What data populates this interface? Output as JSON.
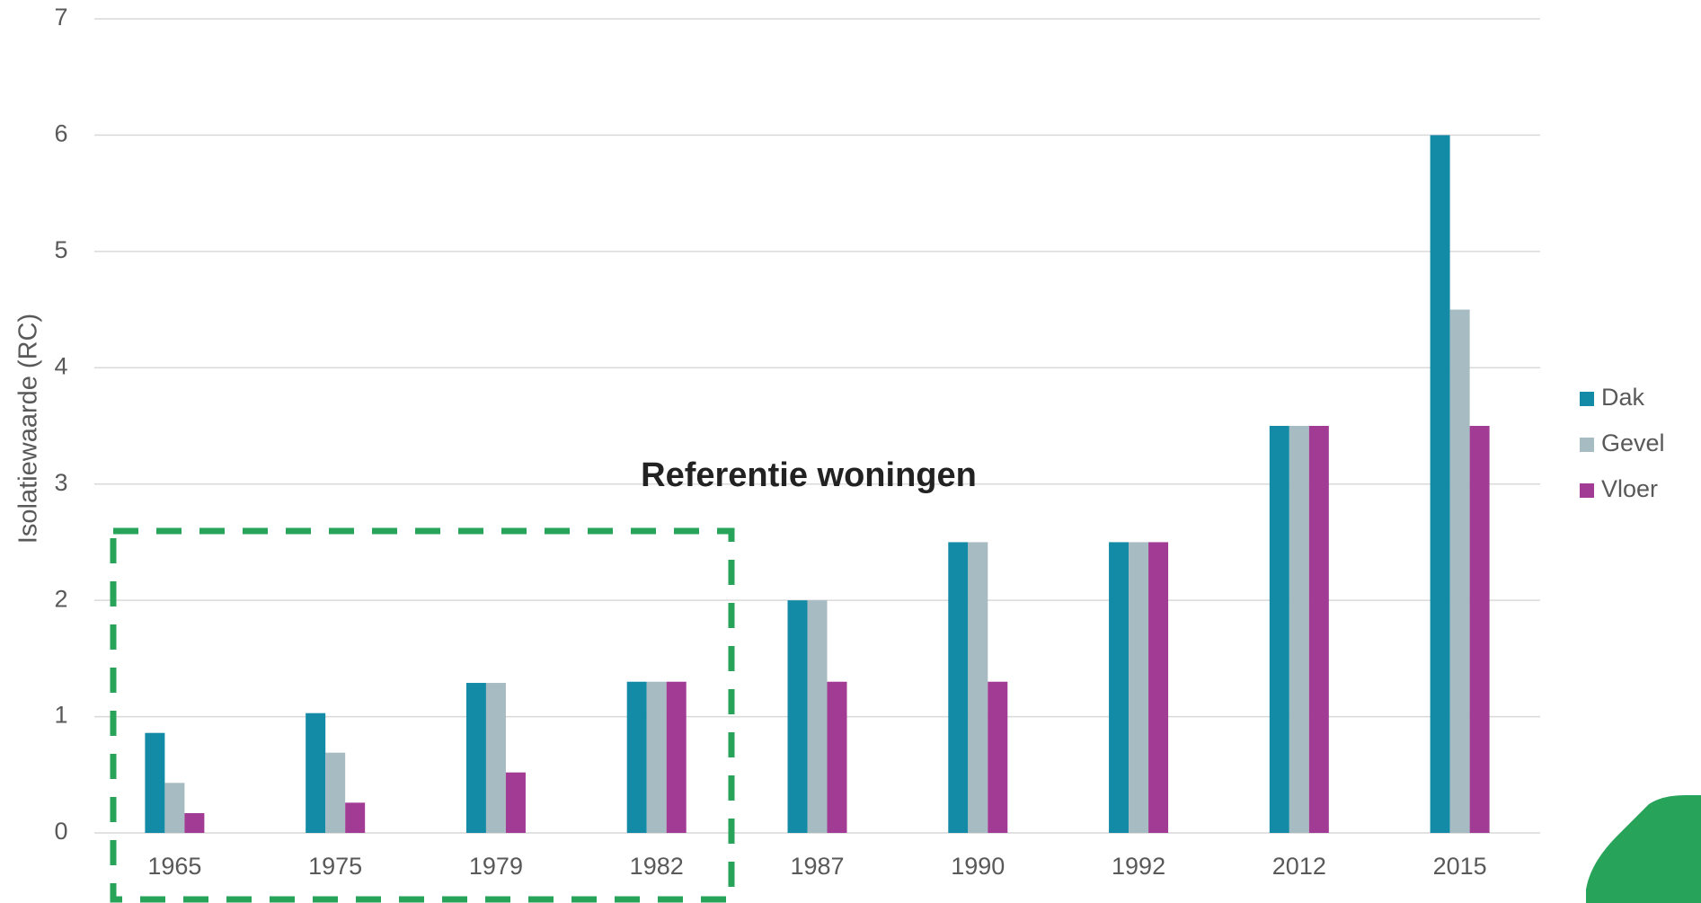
{
  "chart_data": {
    "type": "bar",
    "y_label": "Isolatiewaarde (RC)",
    "annotation": "Referentie woningen",
    "categories": [
      "1965",
      "1975",
      "1979",
      "1982",
      "1987",
      "1990",
      "1992",
      "2012",
      "2015"
    ],
    "series": [
      {
        "name": "Dak",
        "color": "#138ba6",
        "values": [
          0.86,
          1.03,
          1.29,
          1.3,
          2,
          2.5,
          2.5,
          3.5,
          6
        ]
      },
      {
        "name": "Gevel",
        "color": "#a6bbc2",
        "values": [
          0.43,
          0.69,
          1.29,
          1.3,
          2,
          2.5,
          2.5,
          3.5,
          4.5
        ]
      },
      {
        "name": "Vloer",
        "color": "#a23b94",
        "values": [
          0.17,
          0.26,
          0.52,
          1.3,
          1.3,
          1.3,
          2.5,
          3.5,
          3.5
        ]
      }
    ],
    "ylim": [
      0,
      7
    ],
    "yticks": [
      0,
      1,
      2,
      3,
      4,
      5,
      6,
      7
    ],
    "grid": true,
    "legend": "right"
  }
}
